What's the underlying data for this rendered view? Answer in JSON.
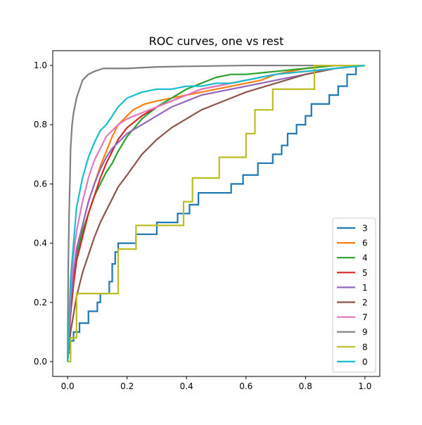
{
  "chart_data": {
    "type": "line",
    "title": "ROC curves, one vs rest",
    "xlabel": "",
    "ylabel": "",
    "xlim": [
      -0.05,
      1.05
    ],
    "ylim": [
      -0.05,
      1.05
    ],
    "xticks": [
      0.0,
      0.2,
      0.4,
      0.6,
      0.8,
      1.0
    ],
    "yticks": [
      0.0,
      0.2,
      0.4,
      0.6,
      0.8,
      1.0
    ],
    "xtick_labels": [
      "0.0",
      "0.2",
      "0.4",
      "0.6",
      "0.8",
      "1.0"
    ],
    "ytick_labels": [
      "0.0",
      "0.2",
      "0.4",
      "0.6",
      "0.8",
      "1.0"
    ],
    "grid": false,
    "legend_position": "lower right",
    "series": [
      {
        "name": "3",
        "color": "#1f77b4",
        "step": true,
        "x": [
          0.0,
          0.0,
          0.01,
          0.01,
          0.02,
          0.02,
          0.04,
          0.04,
          0.07,
          0.07,
          0.1,
          0.1,
          0.11,
          0.11,
          0.14,
          0.14,
          0.15,
          0.15,
          0.16,
          0.16,
          0.17,
          0.17,
          0.23,
          0.23,
          0.3,
          0.3,
          0.37,
          0.37,
          0.41,
          0.41,
          0.44,
          0.44,
          0.55,
          0.55,
          0.59,
          0.59,
          0.64,
          0.64,
          0.69,
          0.69,
          0.72,
          0.72,
          0.74,
          0.74,
          0.77,
          0.77,
          0.8,
          0.8,
          0.82,
          0.82,
          0.88,
          0.88,
          0.91,
          0.91,
          0.94,
          0.94,
          0.97,
          0.97,
          1.0
        ],
        "y": [
          0.0,
          0.03,
          0.03,
          0.07,
          0.07,
          0.1,
          0.1,
          0.13,
          0.13,
          0.17,
          0.17,
          0.2,
          0.2,
          0.23,
          0.23,
          0.27,
          0.27,
          0.33,
          0.33,
          0.37,
          0.37,
          0.4,
          0.4,
          0.43,
          0.43,
          0.47,
          0.47,
          0.5,
          0.5,
          0.53,
          0.53,
          0.57,
          0.57,
          0.6,
          0.6,
          0.63,
          0.63,
          0.67,
          0.67,
          0.7,
          0.7,
          0.73,
          0.73,
          0.77,
          0.77,
          0.8,
          0.8,
          0.83,
          0.83,
          0.87,
          0.87,
          0.9,
          0.9,
          0.93,
          0.93,
          0.97,
          0.97,
          1.0,
          1.0
        ]
      },
      {
        "name": "6",
        "color": "#ff7f0e",
        "step": false,
        "x": [
          0.0,
          0.01,
          0.02,
          0.03,
          0.05,
          0.07,
          0.09,
          0.11,
          0.13,
          0.15,
          0.17,
          0.19,
          0.22,
          0.26,
          0.3,
          0.35,
          0.4,
          0.45,
          0.5,
          0.55,
          0.6,
          0.65,
          0.7,
          0.8,
          0.9,
          1.0
        ],
        "y": [
          0.0,
          0.22,
          0.3,
          0.38,
          0.46,
          0.54,
          0.6,
          0.66,
          0.71,
          0.76,
          0.8,
          0.82,
          0.85,
          0.87,
          0.88,
          0.89,
          0.9,
          0.91,
          0.92,
          0.93,
          0.94,
          0.95,
          0.97,
          0.99,
          1.0,
          1.0
        ]
      },
      {
        "name": "4",
        "color": "#2ca02c",
        "step": false,
        "x": [
          0.0,
          0.01,
          0.02,
          0.03,
          0.05,
          0.07,
          0.09,
          0.11,
          0.13,
          0.15,
          0.17,
          0.2,
          0.25,
          0.3,
          0.35,
          0.4,
          0.45,
          0.5,
          0.55,
          0.6,
          0.7,
          0.8,
          0.9,
          1.0
        ],
        "y": [
          0.0,
          0.18,
          0.28,
          0.36,
          0.44,
          0.5,
          0.56,
          0.6,
          0.64,
          0.67,
          0.71,
          0.76,
          0.82,
          0.86,
          0.89,
          0.92,
          0.94,
          0.96,
          0.97,
          0.97,
          0.98,
          0.99,
          1.0,
          1.0
        ]
      },
      {
        "name": "5",
        "color": "#d62728",
        "step": false,
        "x": [
          0.0,
          0.01,
          0.02,
          0.03,
          0.05,
          0.07,
          0.09,
          0.11,
          0.13,
          0.15,
          0.17,
          0.2,
          0.25,
          0.3,
          0.35,
          0.4,
          0.45,
          0.5,
          0.6,
          0.7,
          0.8,
          0.9,
          1.0
        ],
        "y": [
          0.0,
          0.16,
          0.26,
          0.34,
          0.42,
          0.5,
          0.56,
          0.62,
          0.67,
          0.71,
          0.75,
          0.79,
          0.83,
          0.86,
          0.88,
          0.9,
          0.92,
          0.93,
          0.95,
          0.97,
          0.98,
          0.99,
          1.0
        ]
      },
      {
        "name": "1",
        "color": "#9467bd",
        "step": false,
        "x": [
          0.0,
          0.01,
          0.02,
          0.03,
          0.05,
          0.07,
          0.09,
          0.11,
          0.13,
          0.15,
          0.17,
          0.2,
          0.25,
          0.3,
          0.35,
          0.4,
          0.45,
          0.5,
          0.6,
          0.7,
          0.8,
          0.9,
          1.0
        ],
        "y": [
          0.0,
          0.2,
          0.3,
          0.38,
          0.46,
          0.54,
          0.6,
          0.65,
          0.69,
          0.72,
          0.74,
          0.77,
          0.8,
          0.83,
          0.86,
          0.88,
          0.9,
          0.91,
          0.93,
          0.95,
          0.97,
          0.99,
          1.0
        ]
      },
      {
        "name": "2",
        "color": "#8c564b",
        "step": false,
        "x": [
          0.0,
          0.01,
          0.02,
          0.03,
          0.05,
          0.07,
          0.09,
          0.11,
          0.13,
          0.15,
          0.17,
          0.2,
          0.25,
          0.3,
          0.35,
          0.4,
          0.45,
          0.5,
          0.55,
          0.6,
          0.7,
          0.8,
          0.9,
          1.0
        ],
        "y": [
          0.0,
          0.1,
          0.16,
          0.22,
          0.3,
          0.36,
          0.42,
          0.47,
          0.51,
          0.55,
          0.59,
          0.63,
          0.7,
          0.75,
          0.79,
          0.82,
          0.85,
          0.87,
          0.89,
          0.91,
          0.94,
          0.97,
          0.99,
          1.0
        ]
      },
      {
        "name": "7",
        "color": "#e377c2",
        "step": false,
        "x": [
          0.0,
          0.01,
          0.02,
          0.03,
          0.05,
          0.07,
          0.09,
          0.11,
          0.13,
          0.15,
          0.17,
          0.2,
          0.25,
          0.3,
          0.35,
          0.4,
          0.45,
          0.5,
          0.6,
          0.7,
          0.8,
          0.9,
          1.0
        ],
        "y": [
          0.0,
          0.24,
          0.36,
          0.44,
          0.54,
          0.62,
          0.68,
          0.72,
          0.76,
          0.78,
          0.8,
          0.82,
          0.84,
          0.86,
          0.88,
          0.9,
          0.92,
          0.93,
          0.95,
          0.97,
          0.98,
          0.99,
          1.0
        ]
      },
      {
        "name": "9",
        "color": "#7f7f7f",
        "step": false,
        "x": [
          0.0,
          0.002,
          0.005,
          0.008,
          0.01,
          0.015,
          0.02,
          0.03,
          0.04,
          0.05,
          0.07,
          0.09,
          0.12,
          0.2,
          0.3,
          0.4,
          0.6,
          0.8,
          1.0
        ],
        "y": [
          0.0,
          0.3,
          0.5,
          0.62,
          0.72,
          0.8,
          0.84,
          0.89,
          0.92,
          0.95,
          0.97,
          0.98,
          0.99,
          0.99,
          0.995,
          0.997,
          1.0,
          1.0,
          1.0
        ]
      },
      {
        "name": "8",
        "color": "#bcbd22",
        "step": true,
        "x": [
          0.0,
          0.0,
          0.01,
          0.01,
          0.03,
          0.03,
          0.17,
          0.17,
          0.23,
          0.23,
          0.39,
          0.39,
          0.42,
          0.42,
          0.51,
          0.51,
          0.6,
          0.6,
          0.63,
          0.63,
          0.69,
          0.69,
          0.83,
          0.83,
          0.91,
          0.91,
          1.0
        ],
        "y": [
          0.0,
          0.0,
          0.0,
          0.08,
          0.08,
          0.23,
          0.23,
          0.38,
          0.38,
          0.46,
          0.46,
          0.54,
          0.54,
          0.62,
          0.62,
          0.69,
          0.69,
          0.77,
          0.77,
          0.85,
          0.85,
          0.92,
          0.92,
          1.0,
          1.0,
          1.0,
          1.0
        ]
      },
      {
        "name": "0",
        "color": "#17becf",
        "step": false,
        "x": [
          0.0,
          0.01,
          0.02,
          0.03,
          0.05,
          0.07,
          0.09,
          0.11,
          0.13,
          0.15,
          0.17,
          0.2,
          0.25,
          0.3,
          0.35,
          0.4,
          0.45,
          0.5,
          0.55,
          0.6,
          0.7,
          0.8,
          0.9,
          1.0
        ],
        "y": [
          0.0,
          0.28,
          0.4,
          0.52,
          0.62,
          0.69,
          0.74,
          0.78,
          0.8,
          0.83,
          0.86,
          0.89,
          0.91,
          0.92,
          0.92,
          0.93,
          0.93,
          0.94,
          0.94,
          0.95,
          0.97,
          0.98,
          0.99,
          1.0
        ]
      }
    ]
  }
}
